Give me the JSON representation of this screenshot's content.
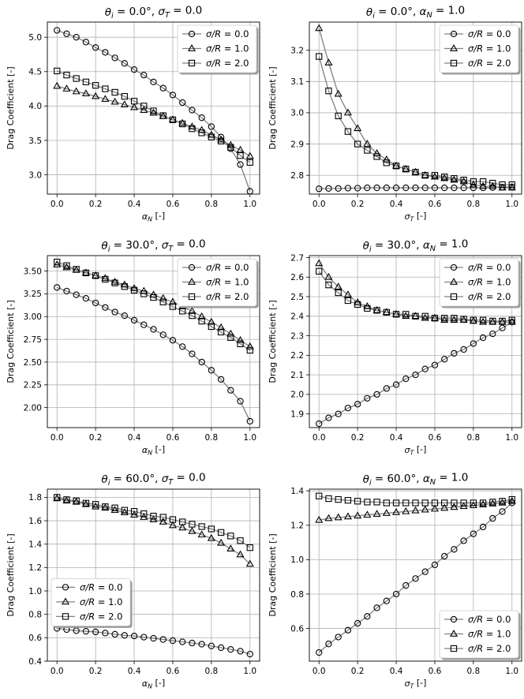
{
  "figure": {
    "ylabel_common": "Drag Coefficient [-]"
  },
  "colors": {
    "line": "#808080",
    "marker_edge": "#000000",
    "grid": "#b0b0b0",
    "spine": "#000000"
  },
  "chart_data": [
    {
      "type": "line",
      "title": "θi = 0.0°, σT = 0.0",
      "title_parts": {
        "var": "θ",
        "sub": "i",
        "rest": " = 0.0°, ",
        "var2": "σ",
        "sub2": "T",
        "rest2": " = 0.0"
      },
      "xlabel": "αN [-]",
      "xlabel_parts": {
        "var": "α",
        "sub": "N",
        "rest": " [-]"
      },
      "ylabel": "Drag Coefficient [-]",
      "xlim": [
        -0.05,
        1.05
      ],
      "ylim": [
        2.72,
        5.22
      ],
      "xticks": [
        0,
        0.2,
        0.4,
        0.6,
        0.8,
        1.0
      ],
      "xtick_labels": [
        "0.0",
        "0.2",
        "0.4",
        "0.6",
        "0.8",
        "1.0"
      ],
      "yticks": [
        3.0,
        3.5,
        4.0,
        4.5,
        5.0
      ],
      "ytick_labels": [
        "3.0",
        "3.5",
        "4.0",
        "4.5",
        "5.0"
      ],
      "legend": {
        "position": "top-right",
        "labels": [
          "σ/R = 0.0",
          "σ/R = 1.0",
          "σ/R = 2.0"
        ]
      },
      "x": [
        0,
        0.05,
        0.1,
        0.15,
        0.2,
        0.25,
        0.3,
        0.35,
        0.4,
        0.45,
        0.5,
        0.55,
        0.6,
        0.65,
        0.7,
        0.75,
        0.8,
        0.85,
        0.9,
        0.95,
        1.0
      ],
      "series": [
        {
          "name": "σ/R = 0.0",
          "marker": "circle",
          "values": [
            5.1,
            5.05,
            5.0,
            4.93,
            4.85,
            4.78,
            4.7,
            4.62,
            4.53,
            4.45,
            4.35,
            4.26,
            4.16,
            4.05,
            3.94,
            3.83,
            3.7,
            3.55,
            3.38,
            3.15,
            2.76
          ]
        },
        {
          "name": "σ/R = 1.0",
          "marker": "triangle",
          "values": [
            4.29,
            4.25,
            4.21,
            4.18,
            4.14,
            4.1,
            4.06,
            4.02,
            3.98,
            3.94,
            3.9,
            3.85,
            3.8,
            3.75,
            3.7,
            3.65,
            3.58,
            3.51,
            3.43,
            3.36,
            3.27
          ]
        },
        {
          "name": "σ/R = 2.0",
          "marker": "square",
          "values": [
            4.51,
            4.45,
            4.4,
            4.35,
            4.3,
            4.25,
            4.2,
            4.14,
            4.07,
            4.0,
            3.93,
            3.86,
            3.8,
            3.74,
            3.67,
            3.61,
            3.55,
            3.49,
            3.4,
            3.28,
            3.18
          ]
        }
      ]
    },
    {
      "type": "line",
      "title": "θi = 0.0°, αN = 1.0",
      "title_parts": {
        "var": "θ",
        "sub": "i",
        "rest": " = 0.0°, ",
        "var2": "α",
        "sub2": "N",
        "rest2": " = 1.0"
      },
      "xlabel": "σT [-]",
      "xlabel_parts": {
        "var": "σ",
        "sub": "T",
        "rest": " [-]"
      },
      "ylabel": "Drag Coefficient [-]",
      "xlim": [
        -0.05,
        1.05
      ],
      "ylim": [
        2.74,
        3.29
      ],
      "xticks": [
        0,
        0.2,
        0.4,
        0.6,
        0.8,
        1.0
      ],
      "xtick_labels": [
        "0.0",
        "0.2",
        "0.4",
        "0.6",
        "0.8",
        "1.0"
      ],
      "yticks": [
        2.8,
        2.9,
        3.0,
        3.1,
        3.2
      ],
      "ytick_labels": [
        "2.8",
        "2.9",
        "3.0",
        "3.1",
        "3.2"
      ],
      "legend": {
        "position": "top-right",
        "labels": [
          "σ/R = 0.0",
          "σ/R = 1.0",
          "σ/R = 2.0"
        ]
      },
      "x": [
        0,
        0.05,
        0.1,
        0.15,
        0.2,
        0.25,
        0.3,
        0.35,
        0.4,
        0.45,
        0.5,
        0.55,
        0.6,
        0.65,
        0.7,
        0.75,
        0.8,
        0.85,
        0.9,
        0.95,
        1.0
      ],
      "series": [
        {
          "name": "σ/R = 0.0",
          "marker": "circle",
          "values": [
            2.757,
            2.758,
            2.758,
            2.759,
            2.759,
            2.76,
            2.76,
            2.76,
            2.76,
            2.76,
            2.76,
            2.76,
            2.76,
            2.76,
            2.76,
            2.76,
            2.76,
            2.76,
            2.761,
            2.762,
            2.763
          ]
        },
        {
          "name": "σ/R = 1.0",
          "marker": "triangle",
          "values": [
            3.27,
            3.16,
            3.06,
            3.0,
            2.95,
            2.9,
            2.87,
            2.85,
            2.83,
            2.82,
            2.81,
            2.8,
            2.795,
            2.79,
            2.785,
            2.78,
            2.77,
            2.765,
            2.765,
            2.76,
            2.76
          ]
        },
        {
          "name": "σ/R = 2.0",
          "marker": "square",
          "values": [
            3.18,
            3.07,
            2.99,
            2.94,
            2.9,
            2.88,
            2.86,
            2.84,
            2.83,
            2.82,
            2.81,
            2.8,
            2.8,
            2.795,
            2.79,
            2.785,
            2.78,
            2.78,
            2.775,
            2.77,
            2.77
          ]
        }
      ]
    },
    {
      "type": "line",
      "title": "θi = 30.0°, σT = 0.0",
      "title_parts": {
        "var": "θ",
        "sub": "i",
        "rest": " = 30.0°, ",
        "var2": "σ",
        "sub2": "T",
        "rest2": " = 0.0"
      },
      "xlabel": "αN [-]",
      "xlabel_parts": {
        "var": "α",
        "sub": "N",
        "rest": " [-]"
      },
      "ylabel": "Drag Coefficient [-]",
      "xlim": [
        -0.05,
        1.05
      ],
      "ylim": [
        1.78,
        3.67
      ],
      "xticks": [
        0,
        0.2,
        0.4,
        0.6,
        0.8,
        1.0
      ],
      "xtick_labels": [
        "0.0",
        "0.2",
        "0.4",
        "0.6",
        "0.8",
        "1.0"
      ],
      "yticks": [
        2.0,
        2.25,
        2.5,
        2.75,
        3.0,
        3.25,
        3.5
      ],
      "ytick_labels": [
        "2.00",
        "2.25",
        "2.50",
        "2.75",
        "3.00",
        "3.25",
        "3.50"
      ],
      "legend": {
        "position": "top-right",
        "labels": [
          "σ/R = 0.0",
          "σ/R = 1.0",
          "σ/R = 2.0"
        ]
      },
      "x": [
        0,
        0.05,
        0.1,
        0.15,
        0.2,
        0.25,
        0.3,
        0.35,
        0.4,
        0.45,
        0.5,
        0.55,
        0.6,
        0.65,
        0.7,
        0.75,
        0.8,
        0.85,
        0.9,
        0.95,
        1.0
      ],
      "series": [
        {
          "name": "σ/R = 0.0",
          "marker": "circle",
          "values": [
            3.32,
            3.28,
            3.24,
            3.2,
            3.15,
            3.1,
            3.05,
            3.01,
            2.96,
            2.91,
            2.86,
            2.8,
            2.74,
            2.67,
            2.59,
            2.5,
            2.41,
            2.31,
            2.19,
            2.07,
            1.85
          ]
        },
        {
          "name": "σ/R = 1.0",
          "marker": "triangle",
          "values": [
            3.57,
            3.54,
            3.51,
            3.48,
            3.45,
            3.42,
            3.38,
            3.35,
            3.31,
            3.28,
            3.24,
            3.2,
            3.16,
            3.11,
            3.06,
            3.0,
            2.94,
            2.88,
            2.81,
            2.74,
            2.67
          ]
        },
        {
          "name": "σ/R = 2.0",
          "marker": "square",
          "values": [
            3.6,
            3.56,
            3.52,
            3.48,
            3.45,
            3.41,
            3.37,
            3.33,
            3.29,
            3.25,
            3.21,
            3.16,
            3.11,
            3.06,
            3.01,
            2.95,
            2.89,
            2.83,
            2.77,
            2.7,
            2.63
          ]
        }
      ]
    },
    {
      "type": "line",
      "title": "θi = 30.0°, αN = 1.0",
      "title_parts": {
        "var": "θ",
        "sub": "i",
        "rest": " = 30.0°, ",
        "var2": "α",
        "sub2": "N",
        "rest2": " = 1.0"
      },
      "xlabel": "σT [-]",
      "xlabel_parts": {
        "var": "σ",
        "sub": "T",
        "rest": " [-]"
      },
      "ylabel": "Drag Coefficient [-]",
      "xlim": [
        -0.05,
        1.05
      ],
      "ylim": [
        1.83,
        2.71
      ],
      "xticks": [
        0,
        0.2,
        0.4,
        0.6,
        0.8,
        1.0
      ],
      "xtick_labels": [
        "0.0",
        "0.2",
        "0.4",
        "0.6",
        "0.8",
        "1.0"
      ],
      "yticks": [
        1.9,
        2.0,
        2.1,
        2.2,
        2.3,
        2.4,
        2.5,
        2.6,
        2.7
      ],
      "ytick_labels": [
        "1.9",
        "2.0",
        "2.1",
        "2.2",
        "2.3",
        "2.4",
        "2.5",
        "2.6",
        "2.7"
      ],
      "legend": {
        "position": "top-right",
        "labels": [
          "σ/R = 0.0",
          "σ/R = 1.0",
          "σ/R = 2.0"
        ]
      },
      "x": [
        0,
        0.05,
        0.1,
        0.15,
        0.2,
        0.25,
        0.3,
        0.35,
        0.4,
        0.45,
        0.5,
        0.55,
        0.6,
        0.65,
        0.7,
        0.75,
        0.8,
        0.85,
        0.9,
        0.95,
        1.0
      ],
      "series": [
        {
          "name": "σ/R = 0.0",
          "marker": "circle",
          "values": [
            1.85,
            1.88,
            1.9,
            1.93,
            1.95,
            1.98,
            2.0,
            2.03,
            2.05,
            2.08,
            2.1,
            2.13,
            2.15,
            2.18,
            2.21,
            2.23,
            2.26,
            2.29,
            2.31,
            2.34,
            2.37
          ]
        },
        {
          "name": "σ/R = 1.0",
          "marker": "triangle",
          "values": [
            2.67,
            2.6,
            2.55,
            2.51,
            2.47,
            2.45,
            2.43,
            2.42,
            2.41,
            2.4,
            2.4,
            2.39,
            2.39,
            2.38,
            2.38,
            2.38,
            2.375,
            2.37,
            2.37,
            2.37,
            2.37
          ]
        },
        {
          "name": "σ/R = 2.0",
          "marker": "square",
          "values": [
            2.63,
            2.56,
            2.52,
            2.48,
            2.46,
            2.44,
            2.43,
            2.42,
            2.41,
            2.41,
            2.4,
            2.4,
            2.39,
            2.39,
            2.39,
            2.385,
            2.38,
            2.38,
            2.375,
            2.375,
            2.38
          ]
        }
      ]
    },
    {
      "type": "line",
      "title": "θi = 60.0°, σT = 0.0",
      "title_parts": {
        "var": "θ",
        "sub": "i",
        "rest": " = 60.0°, ",
        "var2": "σ",
        "sub2": "T",
        "rest2": " = 0.0"
      },
      "xlabel": "αN [-]",
      "xlabel_parts": {
        "var": "α",
        "sub": "N",
        "rest": " [-]"
      },
      "ylabel": "Drag Coefficient [-]",
      "xlim": [
        -0.05,
        1.05
      ],
      "ylim": [
        0.4,
        1.87
      ],
      "xticks": [
        0,
        0.2,
        0.4,
        0.6,
        0.8,
        1.0
      ],
      "xtick_labels": [
        "0.0",
        "0.2",
        "0.4",
        "0.6",
        "0.8",
        "1.0"
      ],
      "yticks": [
        0.4,
        0.6,
        0.8,
        1.0,
        1.2,
        1.4,
        1.6,
        1.8
      ],
      "ytick_labels": [
        "0.4",
        "0.6",
        "0.8",
        "1.0",
        "1.2",
        "1.4",
        "1.6",
        "1.8"
      ],
      "legend": {
        "position": "center-left",
        "labels": [
          "σ/R = 0.0",
          "σ/R = 1.0",
          "σ/R = 2.0"
        ]
      },
      "x": [
        0,
        0.05,
        0.1,
        0.15,
        0.2,
        0.25,
        0.3,
        0.35,
        0.4,
        0.45,
        0.5,
        0.55,
        0.6,
        0.65,
        0.7,
        0.75,
        0.8,
        0.85,
        0.9,
        0.95,
        1.0
      ],
      "series": [
        {
          "name": "σ/R = 0.0",
          "marker": "circle",
          "values": [
            0.68,
            0.67,
            0.66,
            0.655,
            0.65,
            0.64,
            0.63,
            0.62,
            0.615,
            0.605,
            0.595,
            0.585,
            0.575,
            0.565,
            0.555,
            0.545,
            0.53,
            0.515,
            0.5,
            0.485,
            0.46
          ]
        },
        {
          "name": "σ/R = 1.0",
          "marker": "triangle",
          "values": [
            1.79,
            1.77,
            1.76,
            1.74,
            1.72,
            1.71,
            1.69,
            1.67,
            1.65,
            1.63,
            1.61,
            1.59,
            1.56,
            1.54,
            1.51,
            1.48,
            1.45,
            1.41,
            1.36,
            1.31,
            1.23
          ]
        },
        {
          "name": "σ/R = 2.0",
          "marker": "square",
          "values": [
            1.8,
            1.78,
            1.77,
            1.75,
            1.74,
            1.72,
            1.71,
            1.69,
            1.68,
            1.66,
            1.64,
            1.63,
            1.61,
            1.59,
            1.57,
            1.55,
            1.53,
            1.5,
            1.47,
            1.43,
            1.37
          ]
        }
      ]
    },
    {
      "type": "line",
      "title": "θi = 60.0°, αN = 1.0",
      "title_parts": {
        "var": "θ",
        "sub": "i",
        "rest": " = 60.0°, ",
        "var2": "α",
        "sub2": "N",
        "rest2": " = 1.0"
      },
      "xlabel": "σT [-]",
      "xlabel_parts": {
        "var": "σ",
        "sub": "T",
        "rest": " [-]"
      },
      "ylabel": "Drag Coefficient [-]",
      "xlim": [
        -0.05,
        1.05
      ],
      "ylim": [
        0.41,
        1.41
      ],
      "xticks": [
        0,
        0.2,
        0.4,
        0.6,
        0.8,
        1.0
      ],
      "xtick_labels": [
        "0.0",
        "0.2",
        "0.4",
        "0.6",
        "0.8",
        "1.0"
      ],
      "yticks": [
        0.6,
        0.8,
        1.0,
        1.2,
        1.4
      ],
      "ytick_labels": [
        "0.6",
        "0.8",
        "1.0",
        "1.2",
        "1.4"
      ],
      "legend": {
        "position": "bottom-right",
        "labels": [
          "σ/R = 0.0",
          "σ/R = 1.0",
          "σ/R = 2.0"
        ]
      },
      "x": [
        0,
        0.05,
        0.1,
        0.15,
        0.2,
        0.25,
        0.3,
        0.35,
        0.4,
        0.45,
        0.5,
        0.55,
        0.6,
        0.65,
        0.7,
        0.75,
        0.8,
        0.85,
        0.9,
        0.95,
        1.0
      ],
      "series": [
        {
          "name": "σ/R = 0.0",
          "marker": "circle",
          "values": [
            0.46,
            0.51,
            0.55,
            0.59,
            0.63,
            0.67,
            0.72,
            0.76,
            0.8,
            0.85,
            0.89,
            0.93,
            0.97,
            1.02,
            1.06,
            1.11,
            1.15,
            1.19,
            1.24,
            1.28,
            1.33
          ]
        },
        {
          "name": "σ/R = 1.0",
          "marker": "triangle",
          "values": [
            1.23,
            1.24,
            1.245,
            1.25,
            1.255,
            1.26,
            1.265,
            1.27,
            1.275,
            1.28,
            1.285,
            1.29,
            1.295,
            1.3,
            1.305,
            1.31,
            1.315,
            1.32,
            1.325,
            1.33,
            1.34
          ]
        },
        {
          "name": "σ/R = 2.0",
          "marker": "square",
          "values": [
            1.37,
            1.355,
            1.35,
            1.345,
            1.34,
            1.335,
            1.335,
            1.33,
            1.33,
            1.33,
            1.33,
            1.33,
            1.33,
            1.33,
            1.33,
            1.33,
            1.33,
            1.33,
            1.335,
            1.34,
            1.35
          ]
        }
      ]
    }
  ]
}
